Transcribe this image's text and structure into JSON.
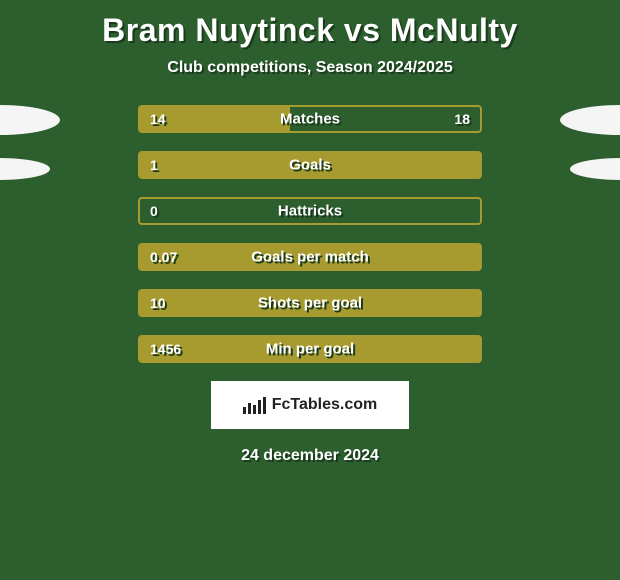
{
  "title": "Bram Nuytinck vs McNulty",
  "subtitle": "Club competitions, Season 2024/2025",
  "colors": {
    "background": "#2c5e2e",
    "bar_fill": "#a79a2f",
    "bar_border": "#a79a2f",
    "text_shadow": "#1a3a1c",
    "ellipse": "#f5f5f5"
  },
  "bars": [
    {
      "label": "Matches",
      "left": "14",
      "right": "18",
      "fill_pct": 44
    },
    {
      "label": "Goals",
      "left": "1",
      "right": "",
      "fill_pct": 100
    },
    {
      "label": "Hattricks",
      "left": "0",
      "right": "",
      "fill_pct": 0
    },
    {
      "label": "Goals per match",
      "left": "0.07",
      "right": "",
      "fill_pct": 100
    },
    {
      "label": "Shots per goal",
      "left": "10",
      "right": "",
      "fill_pct": 100
    },
    {
      "label": "Min per goal",
      "left": "1456",
      "right": "",
      "fill_pct": 100
    }
  ],
  "logo": "FcTables.com",
  "date": "24 december 2024"
}
